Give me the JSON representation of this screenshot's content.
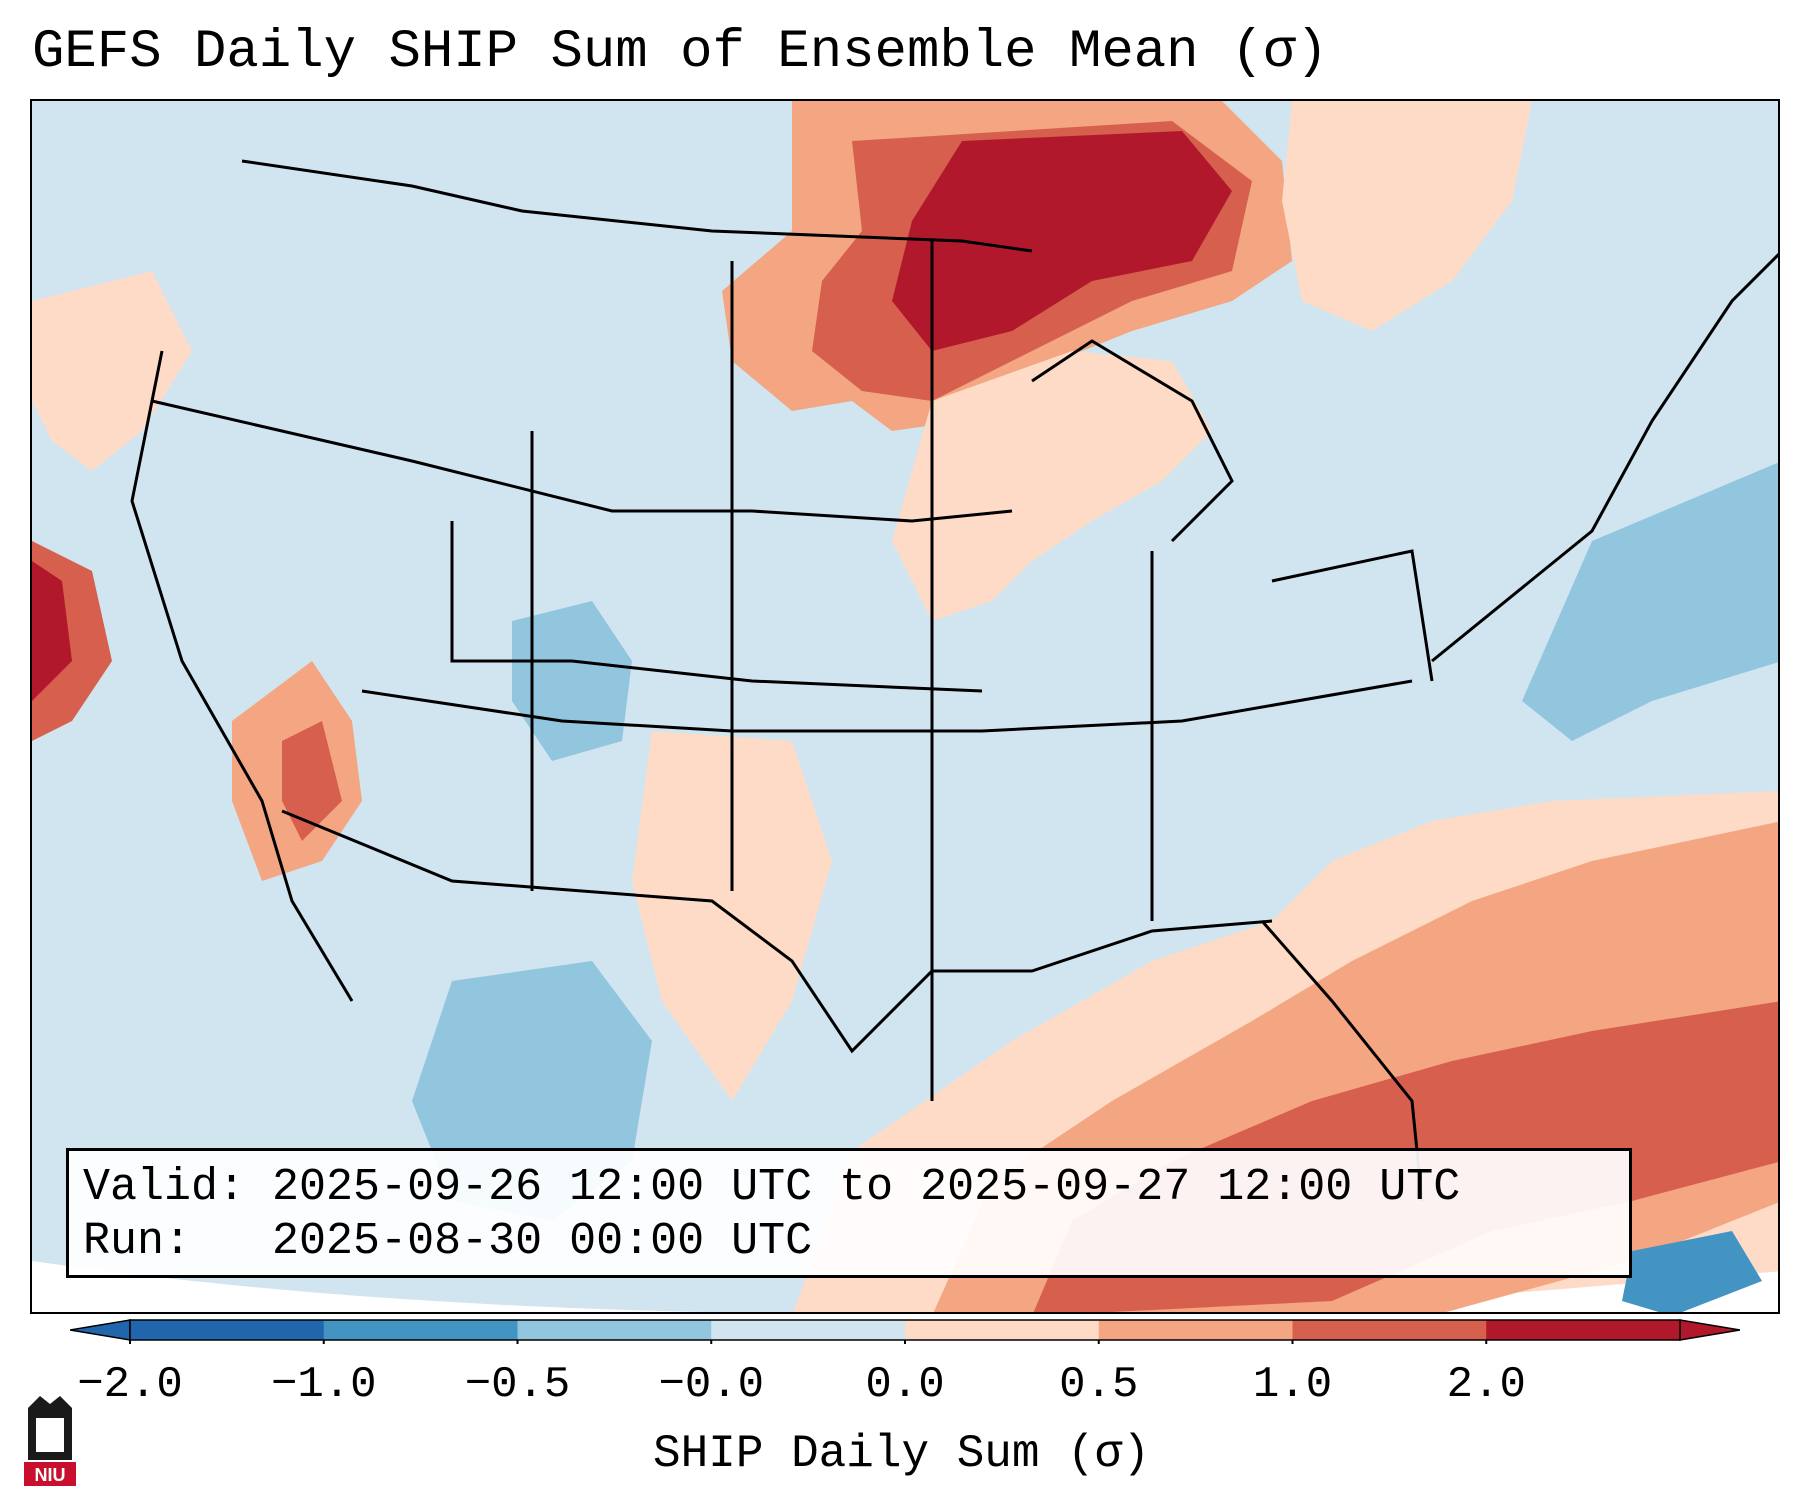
{
  "title": "GEFS Daily SHIP Sum of Ensemble Mean (σ)",
  "info": {
    "valid_label": "Valid:",
    "valid_value": "2025-09-26 12:00 UTC to 2025-09-27 12:00 UTC",
    "run_label": "Run:",
    "run_value": "2025-08-30 00:00 UTC"
  },
  "colorbar": {
    "label": "SHIP Daily Sum (σ)",
    "ticks": [
      "−2.0",
      "−1.0",
      "−0.5",
      "−0.0",
      "0.0",
      "0.5",
      "1.0",
      "2.0"
    ],
    "colors": [
      "#2166ac",
      "#4393c3",
      "#92c5de",
      "#d1e5f0",
      "#fddbc7",
      "#f4a582",
      "#d6604d",
      "#b2182b"
    ],
    "extend": "both"
  },
  "map": {
    "region": "Contiguous United States",
    "background_color": "#d1e5f0",
    "outside_domain_color": "#ffffff"
  },
  "logo": {
    "text": "NIU",
    "color": "#c8102e"
  }
}
